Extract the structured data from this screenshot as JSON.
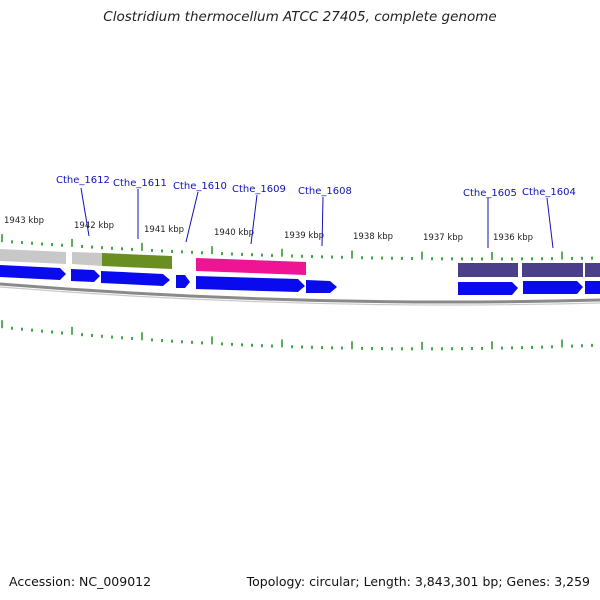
{
  "title": "Clostridium thermocellum ATCC 27405, complete genome",
  "footer": {
    "accession": "Accession: NC_009012",
    "summary": "Topology: circular; Length: 3,843,301 bp; Genes: 3,259"
  },
  "colors": {
    "tick": "#1a8a1a",
    "gene_forward": "#0a0aee",
    "backbone": "#8a8a8a",
    "label": "#1111bb",
    "gray_feature": "#c8c8c8",
    "olive_feature": "#6b8e23",
    "magenta_feature": "#ee1493",
    "purple_feature": "#4b3f8a"
  },
  "scale_labels": [
    "1943 kbp",
    "1942 kbp",
    "1941 kbp",
    "1940 kbp",
    "1939 kbp",
    "1938 kbp",
    "1937 kbp",
    "1936 kbp"
  ],
  "gene_labels": [
    "Cthe_1612",
    "Cthe_1611",
    "Cthe_1610",
    "Cthe_1609",
    "Cthe_1608",
    "Cthe_1605",
    "Cthe_1604"
  ]
}
